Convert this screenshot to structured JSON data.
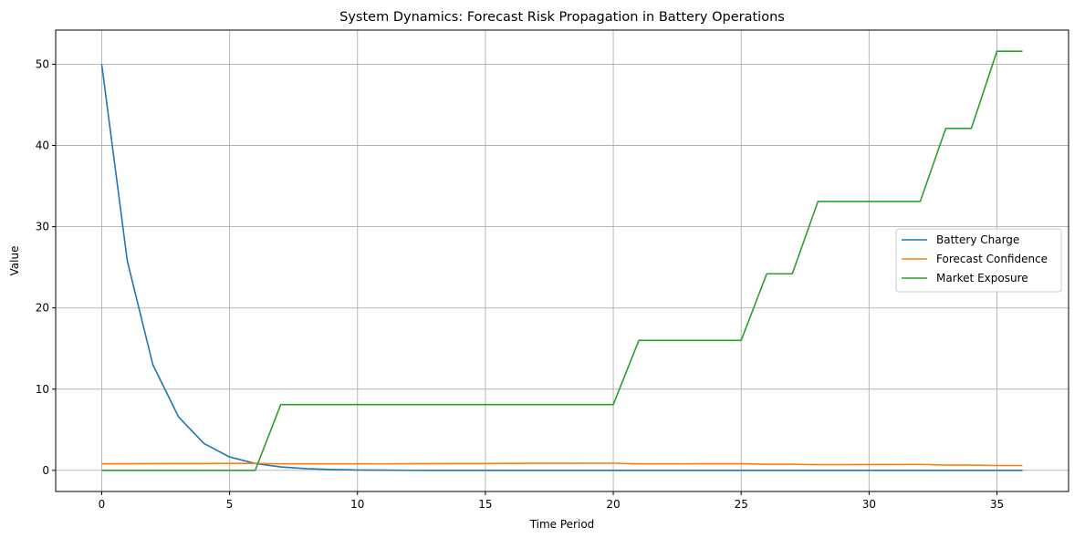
{
  "chart_data": {
    "type": "line",
    "title": "System Dynamics: Forecast Risk Propagation in Battery Operations",
    "xlabel": "Time Period",
    "ylabel": "Value",
    "xlim": [
      -1.8,
      37.8
    ],
    "ylim": [
      -2.6,
      54.2
    ],
    "xticks": [
      0,
      5,
      10,
      15,
      20,
      25,
      30,
      35
    ],
    "yticks": [
      0,
      10,
      20,
      30,
      40,
      50
    ],
    "grid": true,
    "legend_position": "center-right",
    "x": [
      0,
      1,
      2,
      3,
      4,
      5,
      6,
      7,
      8,
      9,
      10,
      11,
      12,
      13,
      14,
      15,
      16,
      17,
      18,
      19,
      20,
      21,
      22,
      23,
      24,
      25,
      26,
      27,
      28,
      29,
      30,
      31,
      32,
      33,
      34,
      35,
      36
    ],
    "series": [
      {
        "name": "Battery Charge",
        "color": "#1f77b4",
        "values": [
          50,
          25.8,
          13,
          6.6,
          3.3,
          1.65,
          0.85,
          0.42,
          0.21,
          0.1,
          0.05,
          0.03,
          0.01,
          0,
          0,
          0,
          0,
          0,
          0,
          0,
          0,
          0,
          0,
          0,
          0,
          0,
          0,
          0,
          0,
          0,
          0,
          0,
          0,
          0,
          0,
          0,
          0
        ]
      },
      {
        "name": "Forecast Confidence",
        "color": "#ff7f0e",
        "values": [
          0.8,
          0.82,
          0.83,
          0.84,
          0.85,
          0.86,
          0.86,
          0.8,
          0.8,
          0.8,
          0.8,
          0.81,
          0.82,
          0.83,
          0.84,
          0.85,
          0.86,
          0.87,
          0.87,
          0.88,
          0.88,
          0.8,
          0.8,
          0.81,
          0.82,
          0.82,
          0.75,
          0.75,
          0.7,
          0.7,
          0.72,
          0.72,
          0.74,
          0.65,
          0.65,
          0.6,
          0.6
        ]
      },
      {
        "name": "Market Exposure",
        "color": "#2ca02c",
        "values": [
          0,
          0,
          0,
          0,
          0,
          0,
          0,
          8.1,
          8.1,
          8.1,
          8.1,
          8.1,
          8.1,
          8.1,
          8.1,
          8.1,
          8.1,
          8.1,
          8.1,
          8.1,
          8.1,
          16,
          16,
          16,
          16,
          16,
          24.2,
          24.2,
          33.1,
          33.1,
          33.1,
          33.1,
          33.1,
          42.1,
          42.1,
          51.6,
          51.6
        ]
      }
    ]
  }
}
